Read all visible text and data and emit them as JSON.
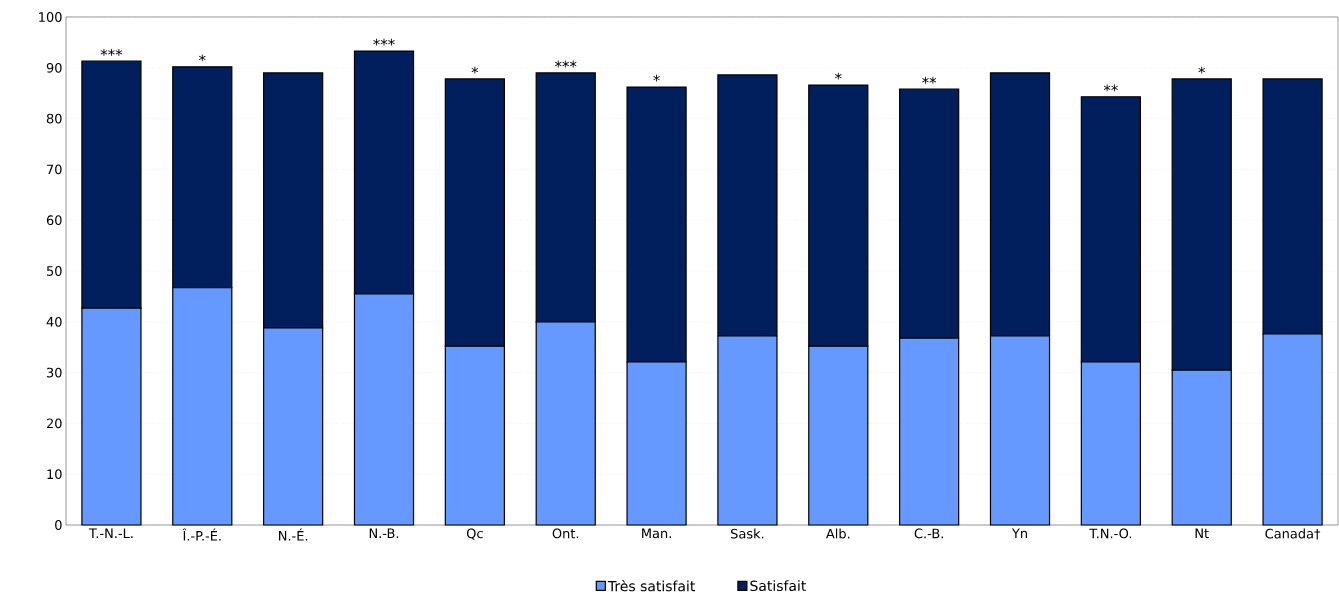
{
  "chart_data": {
    "type": "bar",
    "stacked": true,
    "categories": [
      "T.-N.-L.",
      "Î.-P.-É.",
      "N.-É.",
      "N.-B.",
      "Qc",
      "Ont.",
      "Man.",
      "Sask.",
      "Alb.",
      "C.-B.",
      "Yn",
      "T.N.-O.",
      "Nt",
      "Canada†"
    ],
    "series": [
      {
        "name": "Très satisfait",
        "color": "#6699ff",
        "values": [
          42.7,
          46.7,
          38.8,
          45.5,
          35.2,
          40.0,
          32.1,
          37.2,
          35.2,
          36.8,
          37.2,
          32.1,
          30.5,
          37.6
        ]
      },
      {
        "name": "Satisfait",
        "color": "#001f5c",
        "values": [
          48.6,
          43.5,
          50.2,
          47.8,
          52.6,
          49.0,
          54.1,
          51.4,
          51.4,
          49.0,
          51.8,
          52.2,
          57.3,
          50.2
        ]
      }
    ],
    "ylim": [
      0,
      100
    ],
    "yticks": [
      0,
      10,
      20,
      30,
      40,
      50,
      60,
      70,
      80,
      90,
      100
    ],
    "grid": "y",
    "legend": "bottom",
    "annotations": [
      {
        "text": "***",
        "x": "T.-N.-L.",
        "y": 91.3
      },
      {
        "text": "*",
        "x": "Î.-P.-É.",
        "y": 90.2
      },
      {
        "text": "***",
        "x": "N.-B.",
        "y": 93.3
      },
      {
        "text": "*",
        "x": "Qc",
        "y": 87.8
      },
      {
        "text": "***",
        "x": "Ont.",
        "y": 89.0
      },
      {
        "text": "*",
        "x": "Man.",
        "y": 86.2
      },
      {
        "text": "*",
        "x": "Alb.",
        "y": 86.6
      },
      {
        "text": "**",
        "x": "C.-B.",
        "y": 85.8
      },
      {
        "text": "**",
        "x": "T.N.-O.",
        "y": 84.3
      },
      {
        "text": "*",
        "x": "Nt",
        "y": 87.8
      }
    ]
  }
}
